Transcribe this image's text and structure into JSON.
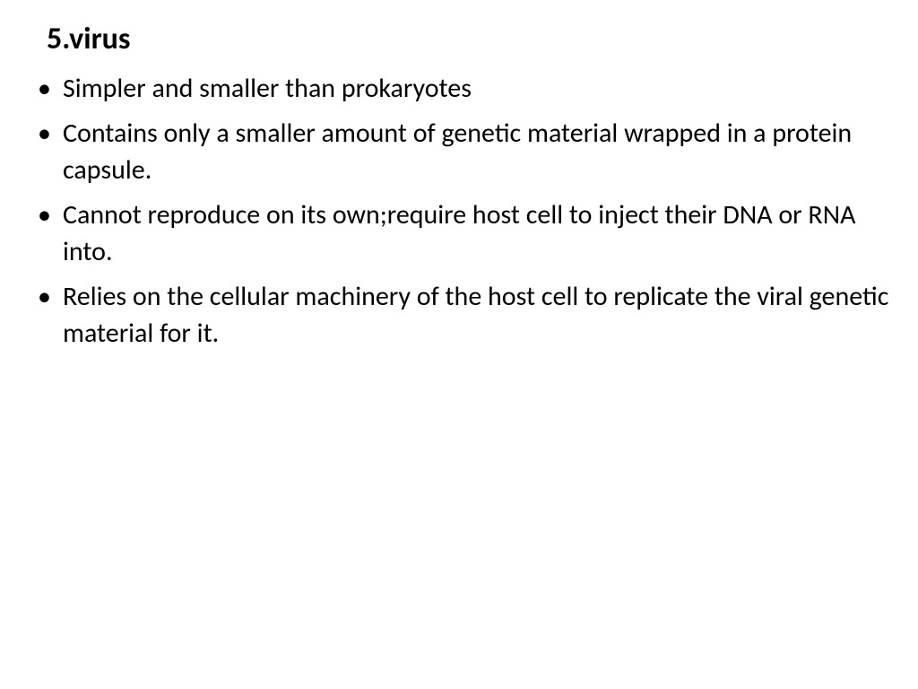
{
  "slide": {
    "title": "5.virus",
    "title_fontsize": 34,
    "title_weight": 700,
    "bullet_fontsize": 30,
    "text_color": "#000000",
    "background_color": "#ffffff",
    "bullets": [
      "Simpler and smaller than prokaryotes",
      "Contains only a smaller amount of genetic material wrapped in a protein capsule.",
      "Cannot reproduce on its own;require host cell to inject their DNA or RNA into.",
      "Relies on the cellular machinery of the host cell to replicate the viral genetic material for it."
    ]
  }
}
